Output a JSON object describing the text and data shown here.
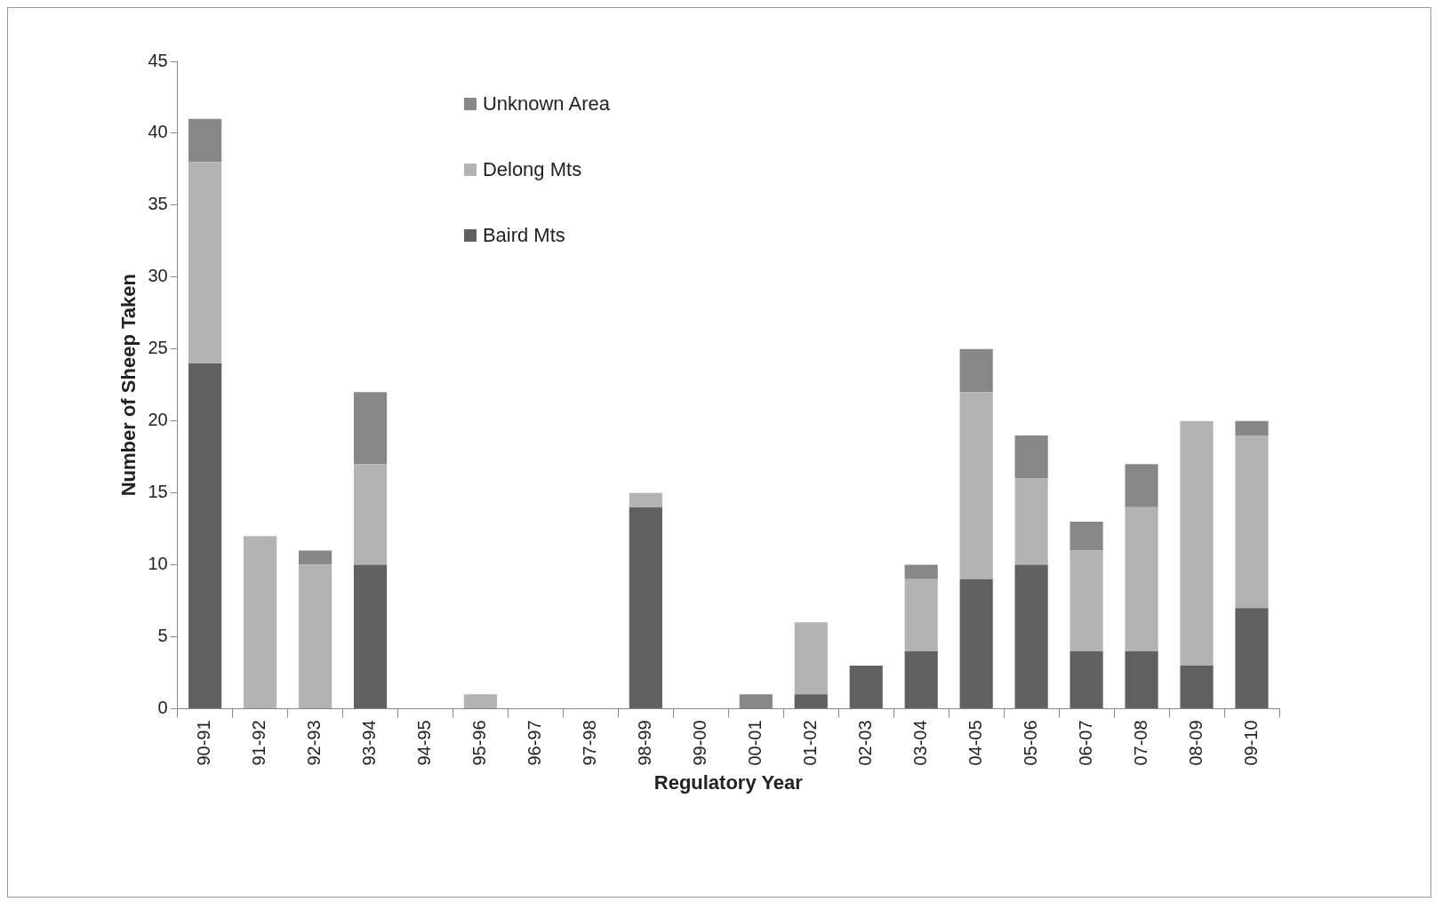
{
  "chart_data": {
    "type": "bar",
    "stacked": true,
    "xlabel": "Regulatory Year",
    "ylabel": "Number of Sheep Taken",
    "categories": [
      "90-91",
      "91-92",
      "92-93",
      "93-94",
      "94-95",
      "95-96",
      "96-97",
      "97-98",
      "98-99",
      "99-00",
      "00-01",
      "01-02",
      "02-03",
      "03-04",
      "04-05",
      "05-06",
      "06-07",
      "07-08",
      "08-09",
      "09-10"
    ],
    "series": [
      {
        "name": "Baird Mts",
        "color": "#606060",
        "values": [
          24,
          0,
          0,
          10,
          0,
          0,
          0,
          0,
          14,
          0,
          0,
          1,
          3,
          4,
          9,
          10,
          4,
          4,
          3,
          7
        ]
      },
      {
        "name": "Delong Mts",
        "color": "#b3b3b3",
        "values": [
          14,
          12,
          10,
          7,
          0,
          1,
          0,
          0,
          1,
          0,
          0,
          5,
          0,
          5,
          13,
          6,
          7,
          10,
          17,
          12
        ]
      },
      {
        "name": "Unknown Area",
        "color": "#878787",
        "values": [
          3,
          0,
          1,
          5,
          0,
          0,
          0,
          0,
          0,
          0,
          1,
          0,
          0,
          1,
          3,
          3,
          2,
          3,
          0,
          1
        ]
      }
    ],
    "ylim": [
      0,
      45
    ],
    "yticks": [
      0,
      5,
      10,
      15,
      20,
      25,
      30,
      35,
      40,
      45
    ],
    "grid": false,
    "legend": "top left"
  }
}
